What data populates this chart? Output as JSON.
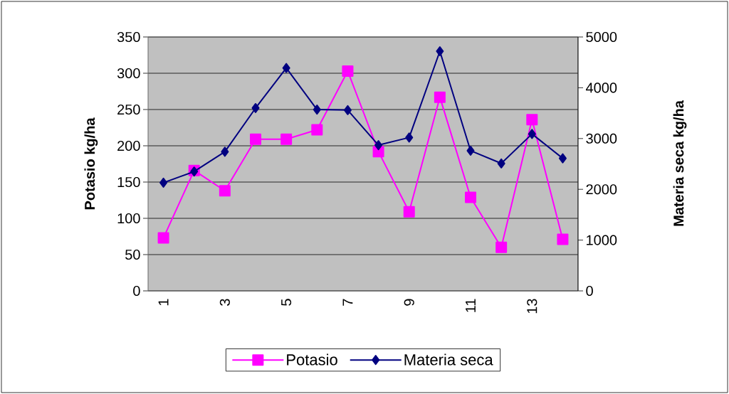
{
  "chart_data": {
    "type": "line",
    "categories": [
      "1",
      null,
      "3",
      null,
      "5",
      null,
      "7",
      null,
      "9",
      null,
      "11",
      null,
      "13",
      null
    ],
    "series": [
      {
        "name": "Potasio",
        "color": "#ff00ff",
        "marker": "square",
        "axis": "y",
        "values": [
          73,
          166,
          138,
          209,
          209,
          222,
          303,
          192,
          109,
          267,
          129,
          60,
          236,
          71
        ]
      },
      {
        "name": "Materia seca",
        "color": "#000080",
        "marker": "diamond",
        "axis": "y2",
        "values": [
          2130,
          2350,
          2740,
          3600,
          4390,
          3570,
          3560,
          2870,
          3020,
          4720,
          2760,
          2510,
          3090,
          2610
        ]
      }
    ],
    "ylabel": "Potasio kg/ha",
    "y2label": "Materia seca kg/ha",
    "ylim": [
      0,
      350
    ],
    "yticks": [
      0,
      50,
      100,
      150,
      200,
      250,
      300,
      350
    ],
    "y2lim": [
      0,
      5000
    ],
    "y2ticks": [
      0,
      1000,
      2000,
      3000,
      4000,
      5000
    ],
    "grid": "y",
    "legend": "bottom"
  }
}
